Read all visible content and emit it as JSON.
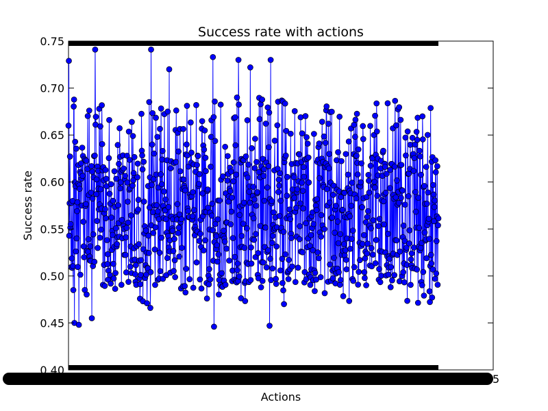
{
  "chart_data": {
    "type": "line",
    "title": "Success rate with actions",
    "xlabel": "Actions",
    "ylabel": "Success rate",
    "ylim": [
      0.4,
      0.75
    ],
    "yticks": [
      "0.40",
      "0.45",
      "0.50",
      "0.55",
      "0.60",
      "0.65",
      "0.70",
      "0.75"
    ],
    "xtick_last_visible": "5",
    "grid": false,
    "legend": "none",
    "series": [
      {
        "color": "#0000ff",
        "edge_color": "#000000",
        "marker": "circle",
        "points_visible_estimate": 1000,
        "value_range": [
          0.446,
          0.741
        ],
        "typical_band": [
          0.49,
          0.63
        ],
        "outliers": [
          {
            "x": 1,
            "y": 0.729
          },
          {
            "x": 16,
            "y": 0.45
          },
          {
            "x": 28,
            "y": 0.448
          },
          {
            "x": 63,
            "y": 0.455
          },
          {
            "x": 72,
            "y": 0.741
          },
          {
            "x": 223,
            "y": 0.741
          },
          {
            "x": 221,
            "y": 0.466
          },
          {
            "x": 272,
            "y": 0.72
          },
          {
            "x": 390,
            "y": 0.733
          },
          {
            "x": 393,
            "y": 0.446
          },
          {
            "x": 459,
            "y": 0.73
          },
          {
            "x": 491,
            "y": 0.722
          },
          {
            "x": 543,
            "y": 0.447
          },
          {
            "x": 546,
            "y": 0.73
          }
        ]
      }
    ]
  }
}
